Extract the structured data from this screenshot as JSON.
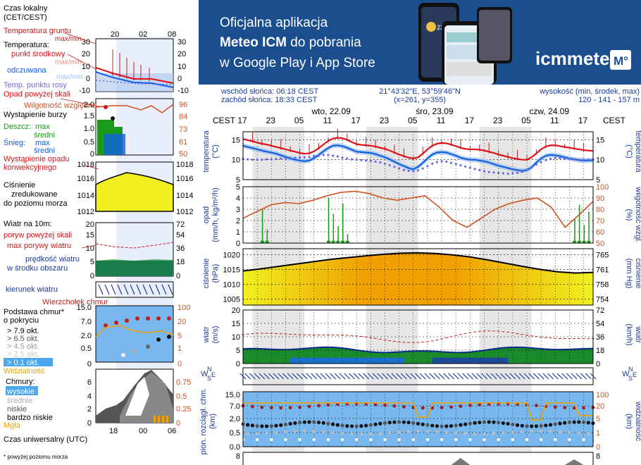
{
  "banner": {
    "line1": "Oficjalna aplikacja",
    "line2_bold": "Meteo ICM",
    "line2_rest": " do pobrania",
    "line3": "w Google Play i App Store",
    "logo": "icmmeteo",
    "logo_badge": "M°",
    "phone_readout": "23°"
  },
  "info": {
    "sunrise": "wschód słońca: 06:18 CEST",
    "sunset": "zachód słońca: 18:33 CEST",
    "coords": "21°43'32\"E, 53°59'46\"N",
    "grid": "(x=261,  y=355)",
    "elevation_label": "wysokość (min, środek, max)",
    "elevation_values": "120 - 141 - 157 m"
  },
  "legend": {
    "time_local": "Czas lokalny",
    "time_local_sub": "(CET/CEST)",
    "hours": [
      "20",
      "02",
      "08"
    ],
    "ground_temp": "Temperatura gruntu",
    "ground_temp_sub": "max/min",
    "temperature": "Temperatura:",
    "mid_point": "punkt środkowy",
    "max_min": "max/min",
    "feels_like": "odczuwana",
    "feels_like_sub": "max/min",
    "dew_point": "Temp. punktu rosy",
    "temp_ticks": [
      "30",
      "20",
      "10",
      "0",
      "-10"
    ],
    "precip_above": "Opad powyżej skali",
    "humidity": "Wilgotność względna",
    "storm": "Wystąpienie burzy",
    "rain": "Deszcz:",
    "snow": "Śnieg:",
    "max": "max",
    "avg": "średni",
    "precip_occurrence": "Wystąpienie opadu",
    "precip_occurrence_sub": "konwekcyjnego",
    "precip_ticks": [
      "2.0",
      "1.5",
      "1.0",
      "0.5",
      "0"
    ],
    "hum_ticks": [
      "96",
      "84",
      "73",
      "61",
      "50"
    ],
    "pressure": "Ciśnienie",
    "pressure_sub1": "zredukowane",
    "pressure_sub2": "do poziomu morza",
    "pres_ticks": [
      "1018",
      "1016",
      "1014",
      "1012"
    ],
    "wind": "Wiatr na 10m:",
    "gust_above": "poryw powyżej skali",
    "gust_max": "max porywy wiatru",
    "wind_speed": "prędkość wiatru",
    "wind_speed_sub": "w środku obszaru",
    "wind_ticks_l": [
      "20",
      "15",
      "10",
      "5",
      "0"
    ],
    "wind_ticks_r": [
      "72",
      "54",
      "36",
      "18",
      "0"
    ],
    "wind_dir": "kierunek wiatru",
    "cloud_top": "Wierzchołek chmur",
    "cloud_base": "Podstawa chmur*",
    "cloud_base_sub": "o pokryciu",
    "okta": [
      "> 7.9 okt.",
      "> 6.5 okt.",
      "> 4.5 okt.",
      "> 2.5 okt.",
      "> 0.1 okt."
    ],
    "visibility": "Widzialność",
    "cloud_ticks_l": [
      "15.0",
      "7.0",
      "2.0",
      "0.5",
      "0"
    ],
    "cloud_ticks_r": [
      "100",
      "20",
      "5",
      "1",
      "0"
    ],
    "clouds": "Chmury:",
    "high": "wysokie",
    "mid": "średnie",
    "low": "niskie",
    "very_low": "bardzo niskie",
    "fog": "Mgła",
    "cl_ticks_l": [
      "6",
      "4",
      "2",
      "0"
    ],
    "cl_ticks_r": [
      "0.75",
      "0.5",
      "0.25",
      "0"
    ],
    "utc": "Czas uniwersalny (UTC)",
    "utc_hours": [
      "18",
      "00",
      "06"
    ],
    "footnote": "* powyżej poziomu morza"
  },
  "main": {
    "cest": "CEST",
    "days": [
      "wto, 22.09",
      "śro, 23.09",
      "czw, 24.09"
    ],
    "hours": [
      "17",
      "23",
      "05",
      "11",
      "17",
      "23",
      "05",
      "11",
      "17",
      "23",
      "05",
      "11",
      "17"
    ],
    "temp_label": "temperatura",
    "temp_unit": "(°C)",
    "temp_ticks": [
      "15",
      "10",
      "5"
    ],
    "precip_label": "opad",
    "precip_unit": "(mm/h, kg/m²/h)",
    "hum_label": "wilgotność wzgl.",
    "hum_unit": "(%)",
    "precip_ticks": [
      "5",
      "4",
      "3",
      "2",
      "1",
      "0"
    ],
    "hum_ticks": [
      "100",
      "90",
      "80",
      "70",
      "60",
      "50"
    ],
    "pres_label": "ciśnienie",
    "pres_unit": "(hPa)",
    "pres_unit_r": "(mm Hg)",
    "pres_ticks": [
      "1020",
      "1015",
      "1010",
      "1005"
    ],
    "pres_ticks_r": [
      "765",
      "761",
      "758",
      "754"
    ],
    "wind_label": "wiatr",
    "wind_unit": "(m/s)",
    "wind_unit_r": "(km/h)",
    "wind_ticks": [
      "20",
      "15",
      "10",
      "5",
      "0"
    ],
    "wind_ticks_r": [
      "72",
      "54",
      "36",
      "18",
      "0"
    ],
    "cloud_label": "pion. rozciągł. chm.",
    "cloud_unit": "(km)",
    "vis_label": "widzialność",
    "vis_unit": "(km)",
    "cloud_ticks": [
      "15.0",
      "7.0",
      "2.0",
      "0.5",
      "0.0"
    ],
    "vis_ticks": [
      "100",
      "20",
      "5",
      "1",
      "0"
    ],
    "last_tick": "8",
    "wsn_w": "W",
    "wsn_s": "S",
    "wsn_n": "N",
    "wsn_e": "E"
  },
  "colors": {
    "banner_bg": "#1a4e8e",
    "temp": "#e0101a",
    "feels": "#1060e0",
    "dew": "#6a6adf",
    "humidity": "#d05020",
    "pressure_high": "#f0a000",
    "pressure_low": "#f0f020",
    "wind_fill": "#1a8a2a",
    "sky": "#78b8ee"
  },
  "chart_data": [
    {
      "type": "line",
      "title": "temperatura",
      "ylabel": "(°C)",
      "ylim": [
        5,
        17
      ],
      "x_hours": [
        17,
        18,
        19,
        20,
        21,
        22,
        23,
        0,
        1,
        2,
        3,
        4,
        5,
        6,
        7,
        8,
        9,
        10,
        11,
        12,
        13,
        14,
        15,
        16,
        17,
        18,
        19,
        20,
        21,
        22,
        23,
        0,
        1,
        2,
        3,
        4,
        5,
        6,
        7,
        8,
        9,
        10,
        11,
        12,
        13,
        14,
        15,
        16,
        17,
        18,
        19,
        20,
        21,
        22,
        23,
        0,
        1,
        2,
        3,
        4,
        5,
        6,
        7,
        8,
        9,
        10,
        11,
        12,
        13,
        14,
        15,
        16,
        17,
        18,
        19
      ],
      "series": [
        {
          "name": "temperatura",
          "values": [
            15.2,
            14.9,
            14.6,
            14.3,
            14.0,
            13.8,
            13.5,
            13.2,
            12.9,
            12.6,
            12.3,
            12.0,
            11.7,
            11.5,
            11.6,
            12.1,
            12.9,
            13.8,
            14.7,
            15.3,
            15.5,
            15.4,
            15.0,
            14.4,
            13.9,
            13.7,
            13.6,
            13.5,
            13.3,
            13.0,
            12.7,
            12.3,
            11.8,
            11.3,
            10.9,
            10.5,
            10.3,
            10.6,
            11.5,
            12.6,
            13.5,
            14.0,
            14.2,
            14.1,
            13.8,
            13.4,
            13.0,
            12.7,
            12.6,
            12.6,
            12.5,
            12.3,
            12.0,
            11.7,
            11.3,
            11.0,
            10.7,
            10.4,
            10.2,
            10.0,
            10.0,
            10.6,
            11.6,
            12.6,
            13.3,
            13.6,
            13.6,
            13.4,
            13.2,
            13.0,
            12.8,
            12.6,
            12.4,
            12.3,
            12.2
          ]
        },
        {
          "name": "odczuwana",
          "values": [
            13.5,
            13.2,
            12.9,
            12.6,
            12.3,
            12.0,
            11.8,
            11.5,
            11.1,
            10.7,
            10.3,
            10.0,
            9.8,
            9.6,
            9.8,
            10.4,
            11.2,
            12.1,
            12.9,
            13.5,
            13.6,
            13.4,
            13.0,
            12.5,
            12.0,
            11.9,
            11.8,
            11.7,
            11.4,
            11.0,
            10.6,
            10.1,
            9.5,
            8.9,
            8.4,
            7.9,
            7.6,
            8.2,
            9.2,
            10.3,
            11.3,
            11.8,
            11.9,
            11.8,
            11.4,
            11.0,
            10.5,
            10.2,
            10.0,
            10.0,
            9.8,
            9.6,
            9.3,
            8.9,
            8.5,
            8.2,
            7.9,
            7.6,
            7.4,
            7.2,
            7.4,
            8.1,
            9.3,
            10.3,
            11.0,
            11.2,
            11.1,
            10.9,
            10.6,
            10.3,
            10.1,
            9.9,
            9.8,
            9.8,
            9.9
          ]
        },
        {
          "name": "Temp. punktu rosy",
          "values": [
            10.2,
            10.1,
            10.0,
            10.0,
            10.0,
            10.1,
            10.1,
            10.2,
            10.3,
            10.4,
            10.5,
            10.5,
            10.6,
            10.6,
            10.7,
            10.9,
            11.0,
            11.2,
            11.2,
            11.0,
            10.8,
            10.5,
            10.3,
            10.1,
            10.0,
            9.9,
            9.8,
            9.7,
            9.5,
            9.3,
            9.0,
            8.6,
            8.2,
            7.8,
            7.4,
            7.2,
            7.1,
            7.3,
            7.8,
            8.4,
            9.0,
            9.4,
            9.6,
            9.5,
            9.2,
            8.9,
            8.6,
            8.3,
            8.0,
            7.7,
            7.4,
            7.1,
            6.9,
            6.8,
            6.7,
            6.6,
            6.5,
            6.6,
            6.7,
            7.0,
            7.5,
            8.1,
            8.8,
            9.4,
            9.9,
            10.2,
            10.4,
            10.4,
            10.3,
            10.2,
            10.1,
            10.0,
            10.0,
            10.0,
            10.0
          ]
        }
      ]
    },
    {
      "type": "area",
      "title": "ciśnienie",
      "ylabel": "(hPa)",
      "ylim": [
        1003,
        1022
      ],
      "x": [
        0,
        0.05,
        0.1,
        0.15,
        0.2,
        0.25,
        0.3,
        0.35,
        0.4,
        0.45,
        0.5,
        0.55,
        0.6,
        0.65,
        0.7,
        0.75,
        0.8,
        0.85,
        0.9,
        0.95,
        1
      ],
      "values": [
        1014.5,
        1015.2,
        1016,
        1016.8,
        1017.6,
        1018.4,
        1019,
        1019.6,
        1020.1,
        1020.5,
        1020.6,
        1020.4,
        1019.9,
        1019.2,
        1018.2,
        1017.1,
        1016,
        1015,
        1014.2,
        1013.8,
        1014
      ]
    },
    {
      "type": "line",
      "title": "wilgotność wzgl.",
      "ylabel": "(%)",
      "ylim": [
        50,
        100
      ],
      "x": [
        0,
        0.04,
        0.08,
        0.12,
        0.16,
        0.2,
        0.24,
        0.28,
        0.32,
        0.36,
        0.4,
        0.44,
        0.48,
        0.52,
        0.56,
        0.6,
        0.64,
        0.68,
        0.72,
        0.76,
        0.8,
        0.84,
        0.88,
        0.92,
        0.96,
        1
      ],
      "values": [
        72,
        78,
        84,
        86,
        85,
        88,
        92,
        95,
        96,
        94,
        90,
        88,
        90,
        92,
        82,
        70,
        64,
        72,
        80,
        85,
        88,
        90,
        82,
        64,
        75,
        87
      ]
    }
  ]
}
